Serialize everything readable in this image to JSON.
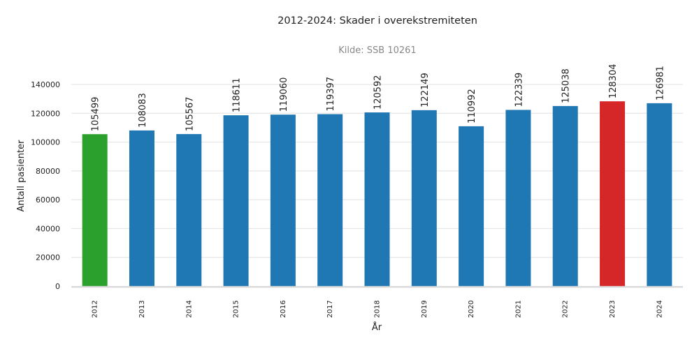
{
  "chart_data": {
    "type": "bar",
    "title": "2012-2024: Skader i overekstremiteten",
    "subtitle": "Kilde: SSB 10261",
    "xlabel": "År",
    "ylabel": "Antall pasienter",
    "categories": [
      "2012",
      "2013",
      "2014",
      "2015",
      "2016",
      "2017",
      "2018",
      "2019",
      "2020",
      "2021",
      "2022",
      "2023",
      "2024"
    ],
    "values": [
      105499,
      108083,
      105567,
      118611,
      119060,
      119397,
      120592,
      122149,
      110992,
      122339,
      125038,
      128304,
      126981
    ],
    "colors": [
      "#2ca02c",
      "#1f77b4",
      "#1f77b4",
      "#1f77b4",
      "#1f77b4",
      "#1f77b4",
      "#1f77b4",
      "#1f77b4",
      "#1f77b4",
      "#1f77b4",
      "#1f77b4",
      "#d62728",
      "#1f77b4"
    ],
    "ylim": [
      0,
      150000
    ],
    "yticks": [
      0,
      20000,
      40000,
      60000,
      80000,
      100000,
      120000,
      140000
    ],
    "grid": true,
    "legend": "none"
  }
}
